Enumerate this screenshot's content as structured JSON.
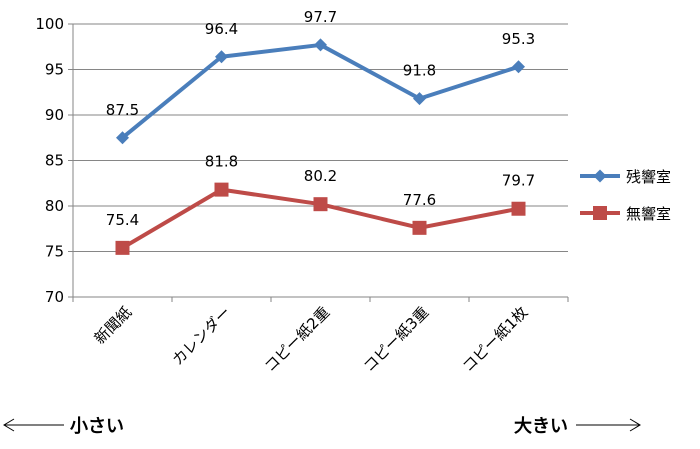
{
  "chart_data": {
    "type": "line",
    "categories": [
      "新聞紙",
      "カレンダー",
      "コピー紙2重",
      "コピー紙3重",
      "コピー紙1枚"
    ],
    "series": [
      {
        "name": "残響室",
        "color": "#4a7ebb",
        "marker": "diamond",
        "values": [
          87.5,
          96.4,
          97.7,
          91.8,
          95.3
        ],
        "labels": [
          "87.5",
          "96.4",
          "97.7",
          "91.8",
          "95.3"
        ]
      },
      {
        "name": "無響室",
        "color": "#be4b48",
        "marker": "square",
        "values": [
          75.4,
          81.8,
          80.2,
          77.6,
          79.7
        ],
        "labels": [
          "75.4",
          "81.8",
          "80.2",
          "77.6",
          "79.7"
        ]
      }
    ],
    "yticks": [
      "70",
      "75",
      "80",
      "85",
      "90",
      "95",
      "100"
    ],
    "ylim": [
      70,
      100
    ],
    "grid": true,
    "legend": "right",
    "gridColor": "#868686"
  },
  "annotations": {
    "left": "小さい",
    "right": "大きい"
  }
}
